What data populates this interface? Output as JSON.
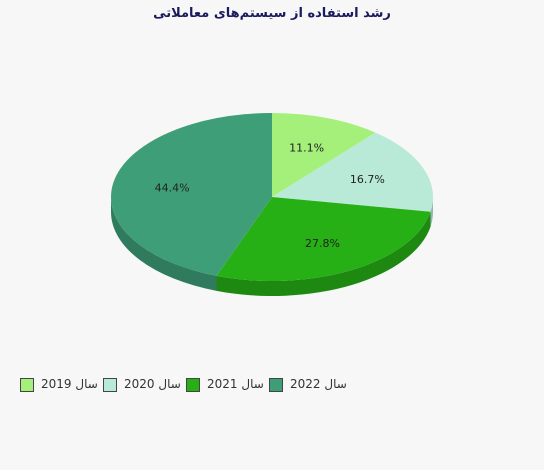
{
  "chart_data": {
    "type": "pie",
    "title": "رشد استفاده از سیستم‌های معاملاتی",
    "legend_position": "bottom-left",
    "slices": [
      {
        "label": "سال 2019",
        "value": 11.1,
        "display": "11.1%",
        "color": "#a4f07a"
      },
      {
        "label": "سال 2020",
        "value": 16.7,
        "display": "16.7%",
        "color": "#b8ead7"
      },
      {
        "label": "سال 2021",
        "value": 27.8,
        "display": "27.8%",
        "color": "#27b016"
      },
      {
        "label": "سال 2022",
        "value": 44.4,
        "display": "44.4%",
        "color": "#3e9e78"
      }
    ]
  }
}
